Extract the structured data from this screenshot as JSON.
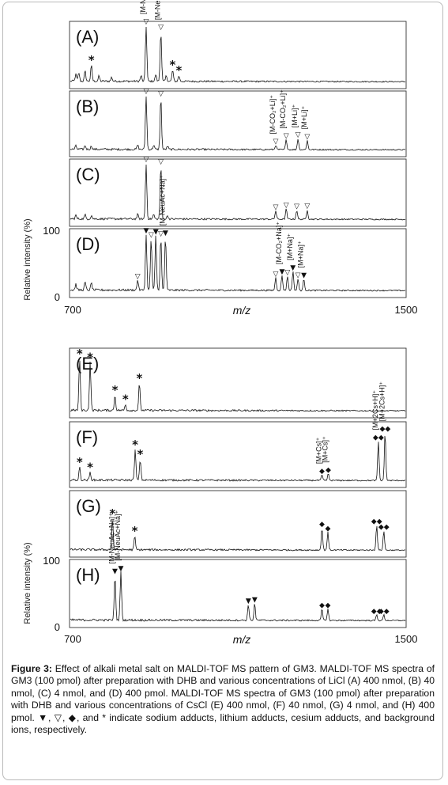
{
  "figure": {
    "ylabel": "Relative intensity (%)",
    "xlabel": "m/z",
    "y_tick_top": "100",
    "y_tick_bottom": "0",
    "x_tick_left": "700",
    "x_tick_right": "1500"
  },
  "chart_data": [
    {
      "type": "line",
      "panel": "(A)",
      "xlim": [
        700,
        1500
      ],
      "ylim": [
        0,
        100
      ],
      "peaks": [
        {
          "mz": 715,
          "y": 12
        },
        {
          "mz": 722,
          "y": 15
        },
        {
          "mz": 737,
          "y": 18
        },
        {
          "mz": 752,
          "y": 28,
          "marker": "*"
        },
        {
          "mz": 770,
          "y": 9
        },
        {
          "mz": 800,
          "y": 7
        },
        {
          "mz": 870,
          "y": 10
        },
        {
          "mz": 882,
          "y": 100,
          "marker": "▽",
          "label": "[M-NeuAc+Li]⁺"
        },
        {
          "mz": 905,
          "y": 12
        },
        {
          "mz": 917,
          "y": 90,
          "marker": "▽",
          "label": "[M-NeuAc+Li]⁺"
        },
        {
          "mz": 930,
          "y": 10
        },
        {
          "mz": 945,
          "y": 20,
          "marker": "*"
        },
        {
          "mz": 960,
          "y": 10,
          "marker": "*"
        }
      ]
    },
    {
      "type": "line",
      "panel": "(B)",
      "xlim": [
        700,
        1500
      ],
      "ylim": [
        0,
        100
      ],
      "peaks": [
        {
          "mz": 715,
          "y": 6
        },
        {
          "mz": 737,
          "y": 7
        },
        {
          "mz": 752,
          "y": 6
        },
        {
          "mz": 862,
          "y": 8
        },
        {
          "mz": 882,
          "y": 100,
          "marker": "▽"
        },
        {
          "mz": 900,
          "y": 8
        },
        {
          "mz": 917,
          "y": 96,
          "marker": "▽"
        },
        {
          "mz": 933,
          "y": 6
        },
        {
          "mz": 1190,
          "y": 8,
          "marker": "▽",
          "label": "[M-CO₂+Li]⁺"
        },
        {
          "mz": 1215,
          "y": 18,
          "marker": "▽",
          "label": "[M-CO₂+Li]⁺"
        },
        {
          "mz": 1243,
          "y": 20,
          "marker": "▽",
          "label": "[M+Li]⁺"
        },
        {
          "mz": 1265,
          "y": 17,
          "marker": "▽",
          "label": "[M+Li]⁺"
        }
      ]
    },
    {
      "type": "line",
      "panel": "(C)",
      "xlim": [
        700,
        1500
      ],
      "ylim": [
        0,
        100
      ],
      "peaks": [
        {
          "mz": 715,
          "y": 6
        },
        {
          "mz": 737,
          "y": 7
        },
        {
          "mz": 752,
          "y": 6
        },
        {
          "mz": 862,
          "y": 8
        },
        {
          "mz": 882,
          "y": 100,
          "marker": "▽"
        },
        {
          "mz": 900,
          "y": 8
        },
        {
          "mz": 917,
          "y": 96,
          "marker": "▽"
        },
        {
          "mz": 933,
          "y": 6
        },
        {
          "mz": 1190,
          "y": 15,
          "marker": "▽"
        },
        {
          "mz": 1215,
          "y": 18,
          "marker": "▽"
        },
        {
          "mz": 1240,
          "y": 16,
          "marker": "▽"
        },
        {
          "mz": 1265,
          "y": 17,
          "marker": "▽"
        }
      ]
    },
    {
      "type": "line",
      "panel": "(D)",
      "xlim": [
        700,
        1500
      ],
      "ylim": [
        0,
        100
      ],
      "peaks": [
        {
          "mz": 715,
          "y": 10
        },
        {
          "mz": 737,
          "y": 14
        },
        {
          "mz": 752,
          "y": 12
        },
        {
          "mz": 862,
          "y": 18,
          "marker": "▽"
        },
        {
          "mz": 882,
          "y": 97,
          "marker": "▼"
        },
        {
          "mz": 894,
          "y": 90,
          "marker": "▽"
        },
        {
          "mz": 905,
          "y": 95,
          "marker": "▼"
        },
        {
          "mz": 917,
          "y": 92,
          "marker": "▽"
        },
        {
          "mz": 928,
          "y": 93,
          "marker": "▼",
          "label": "[M-NeuAc+Na]⁺"
        },
        {
          "mz": 1190,
          "y": 22,
          "marker": "▽"
        },
        {
          "mz": 1205,
          "y": 26,
          "marker": "▼",
          "label": "[M-CO₂+Na]⁺"
        },
        {
          "mz": 1218,
          "y": 25,
          "marker": "▽"
        },
        {
          "mz": 1231,
          "y": 33,
          "marker": "▼",
          "label": "[M+Na]⁺"
        },
        {
          "mz": 1243,
          "y": 20,
          "marker": "▽"
        },
        {
          "mz": 1257,
          "y": 20,
          "marker": "▼",
          "label": "[M+Na]⁺"
        }
      ]
    },
    {
      "type": "line",
      "panel": "(E)",
      "xlim": [
        700,
        1500
      ],
      "ylim": [
        0,
        100
      ],
      "peaks": [
        {
          "mz": 724,
          "y": 88,
          "marker": "*"
        },
        {
          "mz": 749,
          "y": 82,
          "marker": "*"
        },
        {
          "mz": 808,
          "y": 26,
          "marker": "*"
        },
        {
          "mz": 833,
          "y": 10,
          "marker": "*"
        },
        {
          "mz": 866,
          "y": 46,
          "marker": "*"
        }
      ]
    },
    {
      "type": "line",
      "panel": "(F)",
      "xlim": [
        700,
        1500
      ],
      "ylim": [
        0,
        100
      ],
      "peaks": [
        {
          "mz": 724,
          "y": 23,
          "marker": "*"
        },
        {
          "mz": 749,
          "y": 14,
          "marker": "*"
        },
        {
          "mz": 856,
          "y": 55,
          "marker": "*"
        },
        {
          "mz": 868,
          "y": 38,
          "marker": "*"
        },
        {
          "mz": 1300,
          "y": 10,
          "marker": "◆",
          "label": "[M+Cs]⁺"
        },
        {
          "mz": 1315,
          "y": 12,
          "marker": "◆",
          "label": "[M+Cs]⁺"
        },
        {
          "mz": 1434,
          "y": 72,
          "marker": "◆◆",
          "label": "[M+2Cs+H]⁺"
        },
        {
          "mz": 1450,
          "y": 88,
          "marker": "◆◆",
          "label": "[M+2Cs+H]⁺"
        }
      ]
    },
    {
      "type": "line",
      "panel": "(G)",
      "xlim": [
        700,
        1500
      ],
      "ylim": [
        0,
        100
      ],
      "peaks": [
        {
          "mz": 802,
          "y": 56,
          "marker": "*"
        },
        {
          "mz": 855,
          "y": 24,
          "marker": "*"
        },
        {
          "mz": 1300,
          "y": 40,
          "marker": "◆"
        },
        {
          "mz": 1314,
          "y": 32,
          "marker": "◆"
        },
        {
          "mz": 1430,
          "y": 45,
          "marker": "◆◆"
        },
        {
          "mz": 1447,
          "y": 35,
          "marker": "◆◆"
        }
      ]
    },
    {
      "type": "line",
      "panel": "(H)",
      "xlim": [
        700,
        1500
      ],
      "ylim": [
        0,
        100
      ],
      "peaks": [
        {
          "mz": 808,
          "y": 80,
          "marker": "▼",
          "label": "[M-NeuAc+Na]⁺"
        },
        {
          "mz": 822,
          "y": 85,
          "marker": "▼",
          "label": "[M-NeuAc+Na]⁺"
        },
        {
          "mz": 1125,
          "y": 28,
          "marker": "▼"
        },
        {
          "mz": 1140,
          "y": 30,
          "marker": "▼"
        },
        {
          "mz": 1300,
          "y": 20,
          "marker": "◆"
        },
        {
          "mz": 1314,
          "y": 20,
          "marker": "◆"
        },
        {
          "mz": 1430,
          "y": 10,
          "marker": "◆◆"
        },
        {
          "mz": 1447,
          "y": 10,
          "marker": "◆◆"
        }
      ]
    }
  ],
  "caption": {
    "label": "Figure 3:",
    "text": "Effect of alkali metal salt on MALDI-TOF MS pattern of GM3. MALDI-TOF MS spectra of GM3 (100 pmol) after preparation with DHB and various concentrations of LiCl (A) 400 nmol, (B) 40 nmol, (C) 4 nmol, and (D) 400 pmol. MALDI-TOF MS spectra of GM3 (100 pmol) after preparation with DHB and various concentrations of CsCl (E) 400 nmol, (F) 40 nmol, (G) 4 nmol, and (H) 400 pmol. ▼, ▽, ◆, and * indicate sodium adducts, lithium adducts, cesium adducts, and background ions, respectively."
  }
}
